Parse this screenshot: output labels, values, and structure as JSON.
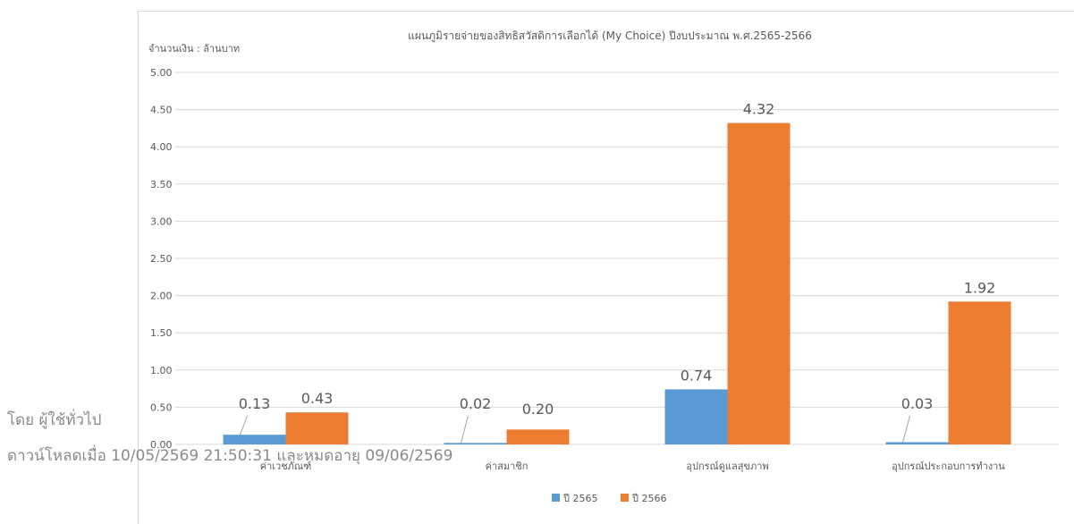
{
  "watermark": {
    "line1": "โดย ผู้ใช้ทั่วไป",
    "line2": "ดาวน์โหลดเมื่อ 10/05/2569 21:50:31 และหมดอายุ 09/06/2569"
  },
  "colors": {
    "series1": "#5b9bd5",
    "series2": "#ed7d31",
    "grid": "#d9d9d9",
    "text": "#595959"
  },
  "chart_data": {
    "type": "bar",
    "title": "แผนภูมิรายจ่ายของสิทธิสวัสดิการเลือกได้ (My Choice) ปีงบประมาณ พ.ศ.2565-2566",
    "ylabel": "จำนวนเงิน : ล้านบาท",
    "xlabel": "",
    "ylim": [
      0,
      5
    ],
    "yticks": [
      "0.00",
      "0.50",
      "1.00",
      "1.50",
      "2.00",
      "2.50",
      "3.00",
      "3.50",
      "4.00",
      "4.50",
      "5.00"
    ],
    "categories": [
      "ค่าเวชภัณฑ์",
      "ค่าสมาชิก",
      "อุปกรณ์ดูแลสุขภาพ",
      "อุปกรณ์ประกอบการทำงาน"
    ],
    "series": [
      {
        "name": "ปี 2565",
        "values": [
          0.13,
          0.02,
          0.74,
          0.03
        ],
        "labels": [
          "0.13",
          "0.02",
          "0.74",
          "0.03"
        ]
      },
      {
        "name": "ปี 2566",
        "values": [
          0.43,
          0.2,
          4.32,
          1.92
        ],
        "labels": [
          "0.43",
          "0.20",
          "4.32",
          "1.92"
        ]
      }
    ],
    "grid": true,
    "legend": "bottom"
  }
}
